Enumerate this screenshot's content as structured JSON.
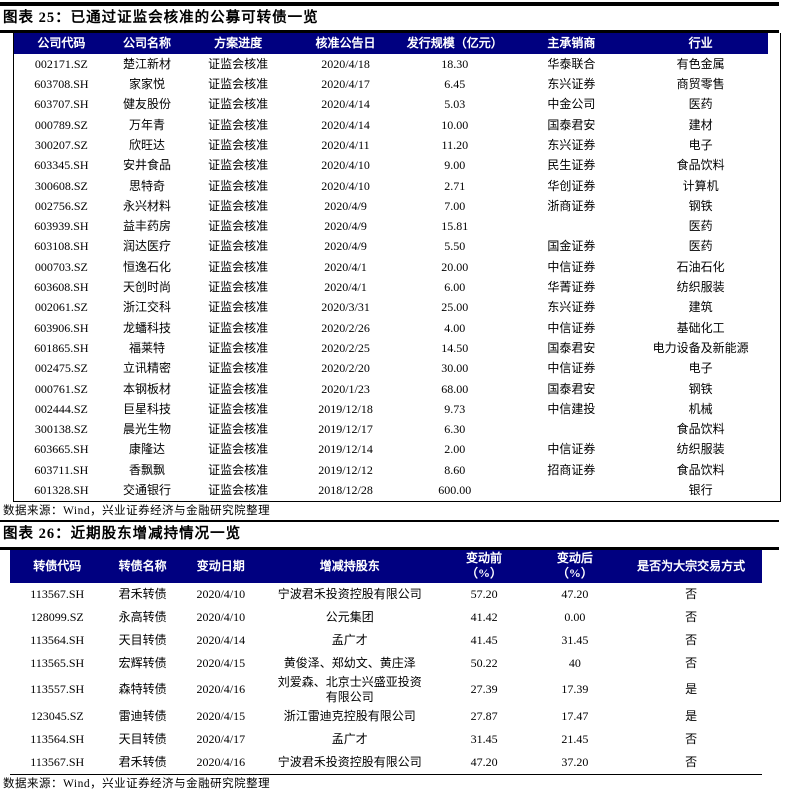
{
  "accent_color": "#000080",
  "figure25": {
    "title": "图表 25：已通过证监会核准的公募可转债一览",
    "headers": [
      "公司代码",
      "公司名称",
      "方案进度",
      "核准公告日",
      "发行规模（亿元）",
      "主承销商",
      "行业"
    ],
    "rows": [
      [
        "002171.SZ",
        "楚江新材",
        "证监会核准",
        "2020/4/18",
        "18.30",
        "华泰联合",
        "有色金属"
      ],
      [
        "603708.SH",
        "家家悦",
        "证监会核准",
        "2020/4/17",
        "6.45",
        "东兴证券",
        "商贸零售"
      ],
      [
        "603707.SH",
        "健友股份",
        "证监会核准",
        "2020/4/14",
        "5.03",
        "中金公司",
        "医药"
      ],
      [
        "000789.SZ",
        "万年青",
        "证监会核准",
        "2020/4/14",
        "10.00",
        "国泰君安",
        "建材"
      ],
      [
        "300207.SZ",
        "欣旺达",
        "证监会核准",
        "2020/4/11",
        "11.20",
        "东兴证券",
        "电子"
      ],
      [
        "603345.SH",
        "安井食品",
        "证监会核准",
        "2020/4/10",
        "9.00",
        "民生证券",
        "食品饮料"
      ],
      [
        "300608.SZ",
        "思特奇",
        "证监会核准",
        "2020/4/10",
        "2.71",
        "华创证券",
        "计算机"
      ],
      [
        "002756.SZ",
        "永兴材料",
        "证监会核准",
        "2020/4/9",
        "7.00",
        "浙商证券",
        "钢铁"
      ],
      [
        "603939.SH",
        "益丰药房",
        "证监会核准",
        "2020/4/9",
        "15.81",
        "",
        "医药"
      ],
      [
        "603108.SH",
        "润达医疗",
        "证监会核准",
        "2020/4/9",
        "5.50",
        "国金证券",
        "医药"
      ],
      [
        "000703.SZ",
        "恒逸石化",
        "证监会核准",
        "2020/4/1",
        "20.00",
        "中信证券",
        "石油石化"
      ],
      [
        "603608.SH",
        "天创时尚",
        "证监会核准",
        "2020/4/1",
        "6.00",
        "华菁证券",
        "纺织服装"
      ],
      [
        "002061.SZ",
        "浙江交科",
        "证监会核准",
        "2020/3/31",
        "25.00",
        "东兴证券",
        "建筑"
      ],
      [
        "603906.SH",
        "龙蟠科技",
        "证监会核准",
        "2020/2/26",
        "4.00",
        "中信证券",
        "基础化工"
      ],
      [
        "601865.SH",
        "福莱特",
        "证监会核准",
        "2020/2/25",
        "14.50",
        "国泰君安",
        "电力设备及新能源"
      ],
      [
        "002475.SZ",
        "立讯精密",
        "证监会核准",
        "2020/2/20",
        "30.00",
        "中信证券",
        "电子"
      ],
      [
        "000761.SZ",
        "本钢板材",
        "证监会核准",
        "2020/1/23",
        "68.00",
        "国泰君安",
        "钢铁"
      ],
      [
        "002444.SZ",
        "巨星科技",
        "证监会核准",
        "2019/12/18",
        "9.73",
        "中信建投",
        "机械"
      ],
      [
        "300138.SZ",
        "晨光生物",
        "证监会核准",
        "2019/12/17",
        "6.30",
        "",
        "食品饮料"
      ],
      [
        "603665.SH",
        "康隆达",
        "证监会核准",
        "2019/12/14",
        "2.00",
        "中信证券",
        "纺织服装"
      ],
      [
        "603711.SH",
        "香飘飘",
        "证监会核准",
        "2019/12/12",
        "8.60",
        "招商证券",
        "食品饮料"
      ],
      [
        "601328.SH",
        "交通银行",
        "证监会核准",
        "2018/12/28",
        "600.00",
        "",
        "银行"
      ]
    ],
    "source": "数据来源：Wind，兴业证券经济与金融研究院整理"
  },
  "figure26": {
    "title": "图表 26：近期股东增减持情况一览",
    "headers": [
      "转债代码",
      "转债名称",
      "变动日期",
      "增减持股东",
      "变动前\n（%）",
      "变动后\n（%）",
      "是否为大宗交易方式"
    ],
    "rows": [
      [
        "113567.SH",
        "君禾转债",
        "2020/4/10",
        "宁波君禾投资控股有限公司",
        "57.20",
        "47.20",
        "否"
      ],
      [
        "128099.SZ",
        "永高转债",
        "2020/4/10",
        "公元集团",
        "41.42",
        "0.00",
        "否"
      ],
      [
        "113564.SH",
        "天目转债",
        "2020/4/14",
        "孟广才",
        "41.45",
        "31.45",
        "否"
      ],
      [
        "113565.SH",
        "宏辉转债",
        "2020/4/15",
        "黄俊泽、郑幼文、黄庄泽",
        "50.22",
        "40",
        "否"
      ],
      [
        "113557.SH",
        "森特转债",
        "2020/4/16",
        "刘爱森、北京士兴盛亚投资\n有限公司",
        "27.39",
        "17.39",
        "是"
      ],
      [
        "123045.SZ",
        "雷迪转债",
        "2020/4/15",
        "浙江雷迪克控股有限公司",
        "27.87",
        "17.47",
        "是"
      ],
      [
        "113564.SH",
        "天目转债",
        "2020/4/17",
        "孟广才",
        "31.45",
        "21.45",
        "否"
      ],
      [
        "113567.SH",
        "君禾转债",
        "2020/4/16",
        "宁波君禾投资控股有限公司",
        "47.20",
        "37.20",
        "否"
      ]
    ],
    "source": "数据来源：Wind，兴业证券经济与金融研究院整理"
  }
}
